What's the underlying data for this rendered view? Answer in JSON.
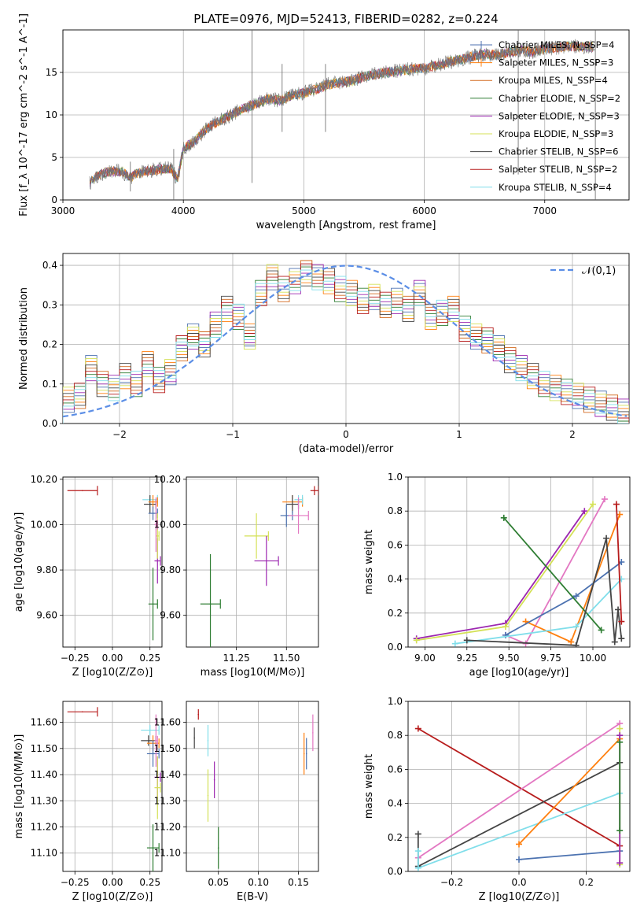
{
  "title": "PLATE=0976, MJD=52413, FIBERID=0282, z=0.224",
  "colors": {
    "chabrier_miles": "#4c72b0",
    "salpeter_miles": "#ff7f0e",
    "kroupa_miles": "#d2691e",
    "chabrier_elodie": "#2e7d32",
    "salpeter_elodie": "#9c27b0",
    "kroupa_elodie": "#d4e157",
    "chabrier_stelib": "#444444",
    "salpeter_stelib": "#b71c1c",
    "kroupa_stelib": "#80deea",
    "pink": "#e377c2",
    "normal": "#5b8ee6"
  },
  "chart_data": [
    {
      "id": "spectrum",
      "type": "line",
      "title": "PLATE=0976, MJD=52413, FIBERID=0282, z=0.224",
      "xlabel": "wavelength [Angstrom, rest frame]",
      "ylabel": "Flux [f_λ 10^-17 erg cm^-2 s^-1 A^-1]",
      "xlim": [
        3000,
        7700
      ],
      "ylim": [
        0,
        20
      ],
      "xticks": [
        3000,
        4000,
        5000,
        6000,
        7000
      ],
      "yticks": [
        0,
        5,
        10,
        15
      ],
      "x": [
        3220,
        3300,
        3400,
        3500,
        3550,
        3600,
        3700,
        3800,
        3900,
        3950,
        4000,
        4100,
        4200,
        4300,
        4400,
        4500,
        4600,
        4700,
        4800,
        4900,
        5000,
        5100,
        5200,
        5300,
        5400,
        5500,
        5600,
        5700,
        5800,
        5900,
        6000,
        6100,
        6200,
        6300,
        6400,
        6500,
        6600,
        6700,
        6800,
        6900,
        7000,
        7100,
        7200,
        7300,
        7400
      ],
      "y": [
        2.0,
        3.0,
        3.4,
        3.3,
        2.6,
        3.0,
        3.4,
        3.6,
        3.7,
        2.4,
        6.0,
        7.0,
        8.5,
        9.3,
        10.0,
        10.8,
        11.3,
        11.9,
        11.7,
        12.3,
        12.6,
        13.0,
        13.6,
        13.8,
        14.0,
        14.5,
        14.8,
        15.0,
        15.2,
        15.4,
        15.5,
        15.8,
        16.2,
        16.5,
        16.9,
        17.2,
        17.0,
        17.4,
        17.6,
        17.4,
        17.8,
        17.9,
        18.1,
        18.0,
        18.0
      ],
      "series": [
        {
          "name": "Chabrier MILES, N_SSP=4",
          "key": "chabrier_miles"
        },
        {
          "name": "Salpeter MILES, N_SSP=3",
          "key": "salpeter_miles"
        },
        {
          "name": "Kroupa MILES, N_SSP=4",
          "key": "kroupa_miles"
        },
        {
          "name": "Chabrier ELODIE, N_SSP=2",
          "key": "chabrier_elodie"
        },
        {
          "name": "Salpeter ELODIE, N_SSP=3",
          "key": "salpeter_elodie"
        },
        {
          "name": "Kroupa ELODIE, N_SSP=3",
          "key": "kroupa_elodie"
        },
        {
          "name": "Chabrier STELIB, N_SSP=6",
          "key": "chabrier_stelib"
        },
        {
          "name": "Salpeter STELIB, N_SSP=2",
          "key": "salpeter_stelib"
        },
        {
          "name": "Kroupa STELIB, N_SSP=4",
          "key": "kroupa_stelib"
        }
      ]
    },
    {
      "id": "residuals",
      "type": "histogram",
      "xlabel": "(data-model)/error",
      "ylabel": "Normed distribution",
      "xlim": [
        -2.5,
        2.5
      ],
      "ylim": [
        0,
        0.43
      ],
      "xticks": [
        -2,
        -1,
        0,
        1,
        2
      ],
      "yticks": [
        0.0,
        0.1,
        0.2,
        0.3,
        0.4
      ],
      "bins": [
        -2.5,
        -2.4,
        -2.3,
        -2.2,
        -2.1,
        -2.0,
        -1.9,
        -1.8,
        -1.7,
        -1.6,
        -1.5,
        -1.4,
        -1.3,
        -1.2,
        -1.1,
        -1.0,
        -0.9,
        -0.8,
        -0.7,
        -0.6,
        -0.5,
        -0.4,
        -0.3,
        -0.2,
        -0.1,
        0.0,
        0.1,
        0.2,
        0.3,
        0.4,
        0.5,
        0.6,
        0.7,
        0.8,
        0.9,
        1.0,
        1.1,
        1.2,
        1.3,
        1.4,
        1.5,
        1.6,
        1.7,
        1.8,
        1.9,
        2.0,
        2.1,
        2.2,
        2.3,
        2.4
      ],
      "values": [
        0.06,
        0.07,
        0.14,
        0.1,
        0.09,
        0.12,
        0.1,
        0.15,
        0.11,
        0.13,
        0.19,
        0.22,
        0.2,
        0.25,
        0.29,
        0.27,
        0.22,
        0.33,
        0.37,
        0.34,
        0.36,
        0.38,
        0.37,
        0.36,
        0.34,
        0.33,
        0.31,
        0.32,
        0.3,
        0.31,
        0.29,
        0.33,
        0.27,
        0.28,
        0.29,
        0.24,
        0.22,
        0.21,
        0.19,
        0.16,
        0.14,
        0.12,
        0.1,
        0.09,
        0.08,
        0.07,
        0.06,
        0.05,
        0.04,
        0.03
      ],
      "legend": "𝒩(0,1)",
      "normal_mu": 0,
      "normal_sigma": 1
    },
    {
      "id": "age_vs_z",
      "type": "errorbar",
      "xlabel": "Z [log10(Z/Z⊙)]",
      "ylabel": "age [log10(age/yr)]",
      "xlim": [
        -0.33,
        0.33
      ],
      "ylim": [
        9.46,
        10.21
      ],
      "xticks": [
        -0.25,
        0.0,
        0.25
      ],
      "yticks": [
        9.6,
        9.8,
        10.0,
        10.2
      ],
      "points": [
        {
          "key": "salpeter_stelib",
          "x": -0.2,
          "y": 10.15,
          "xerr": 0.1,
          "yerr": 0.0
        },
        {
          "key": "kroupa_stelib",
          "x": 0.25,
          "y": 10.11,
          "xerr": 0.05,
          "yerr": 0.02
        },
        {
          "key": "chabrier_stelib",
          "x": 0.25,
          "y": 10.09,
          "xerr": 0.04,
          "yerr": 0.04
        },
        {
          "key": "salpeter_miles",
          "x": 0.27,
          "y": 10.1,
          "xerr": 0.03,
          "yerr": 0.03
        },
        {
          "key": "chabrier_miles",
          "x": 0.27,
          "y": 10.05,
          "xerr": 0.03,
          "yerr": 0.03
        },
        {
          "key": "salpeter_elodie",
          "x": 0.3,
          "y": 9.84,
          "xerr": 0.02,
          "yerr": 0.1
        },
        {
          "key": "kroupa_elodie",
          "x": 0.3,
          "y": 9.95,
          "xerr": 0.01,
          "yerr": 0.1
        },
        {
          "key": "chabrier_elodie",
          "x": 0.27,
          "y": 9.65,
          "xerr": 0.03,
          "yerr": 0.16
        },
        {
          "key": "pink",
          "x": 0.29,
          "y": 10.0,
          "xerr": 0.01,
          "yerr": 0.12
        }
      ]
    },
    {
      "id": "age_vs_mass",
      "type": "errorbar",
      "xlabel": "mass [log10(M/M⊙)]",
      "ylabel": "",
      "xlim": [
        11.0,
        11.66
      ],
      "ylim": [
        9.46,
        10.21
      ],
      "xticks": [
        11.25,
        11.5
      ],
      "yticks": [
        9.6,
        9.8,
        10.0,
        10.2
      ],
      "points": [
        {
          "key": "salpeter_stelib",
          "x": 11.64,
          "y": 10.15,
          "xerr": 0.02,
          "yerr": 0.02
        },
        {
          "key": "salpeter_miles",
          "x": 11.53,
          "y": 10.1,
          "xerr": 0.05,
          "yerr": 0.03
        },
        {
          "key": "chabrier_stelib",
          "x": 11.53,
          "y": 10.09,
          "xerr": 0.03,
          "yerr": 0.04
        },
        {
          "key": "kroupa_stelib",
          "x": 11.56,
          "y": 10.11,
          "xerr": 0.02,
          "yerr": 0.02
        },
        {
          "key": "chabrier_miles",
          "x": 11.5,
          "y": 10.04,
          "xerr": 0.03,
          "yerr": 0.05
        },
        {
          "key": "pink",
          "x": 11.56,
          "y": 10.04,
          "xerr": 0.05,
          "yerr": 0.08
        },
        {
          "key": "kroupa_elodie",
          "x": 11.35,
          "y": 9.95,
          "xerr": 0.06,
          "yerr": 0.1
        },
        {
          "key": "salpeter_elodie",
          "x": 11.4,
          "y": 9.84,
          "xerr": 0.06,
          "yerr": 0.11
        },
        {
          "key": "chabrier_elodie",
          "x": 11.12,
          "y": 9.65,
          "xerr": 0.05,
          "yerr": 0.22
        }
      ]
    },
    {
      "id": "mass_weight_vs_age",
      "type": "line",
      "xlabel": "age [log10(age/yr)]",
      "ylabel": "mass weight",
      "xlim": [
        8.9,
        10.22
      ],
      "ylim": [
        0,
        1
      ],
      "xticks": [
        9.0,
        9.25,
        9.5,
        9.75,
        10.0
      ],
      "yticks": [
        0.0,
        0.2,
        0.4,
        0.6,
        0.8,
        1.0
      ],
      "series": [
        {
          "key": "salpeter_elodie",
          "x": [
            8.95,
            9.48,
            9.95
          ],
          "y": [
            0.05,
            0.14,
            0.8
          ]
        },
        {
          "key": "kroupa_elodie",
          "x": [
            8.95,
            9.48,
            10.0
          ],
          "y": [
            0.04,
            0.12,
            0.84
          ]
        },
        {
          "key": "pink",
          "x": [
            9.48,
            9.6,
            10.07
          ],
          "y": [
            0.07,
            0.02,
            0.87
          ]
        },
        {
          "key": "salpeter_miles",
          "x": [
            9.6,
            9.87,
            10.16
          ],
          "y": [
            0.15,
            0.03,
            0.78
          ]
        },
        {
          "key": "chabrier_miles",
          "x": [
            9.48,
            9.9,
            10.17
          ],
          "y": [
            0.07,
            0.3,
            0.5
          ]
        },
        {
          "key": "kroupa_stelib",
          "x": [
            9.18,
            9.9,
            10.17
          ],
          "y": [
            0.02,
            0.12,
            0.4
          ]
        },
        {
          "key": "chabrier_elodie",
          "x": [
            9.47,
            10.05
          ],
          "y": [
            0.76,
            0.1
          ]
        },
        {
          "key": "chabrier_stelib",
          "x": [
            9.25,
            9.9,
            10.08,
            10.13,
            10.15,
            10.17
          ],
          "y": [
            0.04,
            0.01,
            0.64,
            0.03,
            0.22,
            0.05
          ]
        },
        {
          "key": "salpeter_stelib",
          "x": [
            10.14,
            10.17
          ],
          "y": [
            0.84,
            0.15
          ]
        }
      ]
    },
    {
      "id": "mass_vs_z",
      "type": "errorbar",
      "xlabel": "Z [log10(Z/Z⊙)]",
      "ylabel": "mass [log10(M/M⊙)]",
      "xlim": [
        -0.33,
        0.33
      ],
      "ylim": [
        11.03,
        11.68
      ],
      "xticks": [
        -0.25,
        0.0,
        0.25
      ],
      "yticks": [
        11.1,
        11.2,
        11.3,
        11.4,
        11.5,
        11.6
      ],
      "points": [
        {
          "key": "salpeter_stelib",
          "x": -0.2,
          "y": 11.64,
          "xerr": 0.1,
          "yerr": 0.0
        },
        {
          "key": "kroupa_stelib",
          "x": 0.25,
          "y": 11.57,
          "xerr": 0.06,
          "yerr": 0.02
        },
        {
          "key": "chabrier_stelib",
          "x": 0.24,
          "y": 11.53,
          "xerr": 0.05,
          "yerr": 0.02
        },
        {
          "key": "salpeter_miles",
          "x": 0.27,
          "y": 11.52,
          "xerr": 0.04,
          "yerr": 0.03
        },
        {
          "key": "chabrier_miles",
          "x": 0.27,
          "y": 11.48,
          "xerr": 0.04,
          "yerr": 0.05
        },
        {
          "key": "pink",
          "x": 0.29,
          "y": 11.53,
          "xerr": 0.01,
          "yerr": 0.1
        },
        {
          "key": "salpeter_elodie",
          "x": 0.3,
          "y": 11.39,
          "xerr": 0.02,
          "yerr": 0.08
        },
        {
          "key": "kroupa_elodie",
          "x": 0.3,
          "y": 11.35,
          "xerr": 0.02,
          "yerr": 0.12
        },
        {
          "key": "chabrier_elodie",
          "x": 0.27,
          "y": 11.12,
          "xerr": 0.04,
          "yerr": 0.09
        }
      ]
    },
    {
      "id": "mass_vs_ebv",
      "type": "errorbar",
      "xlabel": "E(B-V)",
      "ylabel": "",
      "xlim": [
        0.01,
        0.175
      ],
      "ylim": [
        11.03,
        11.68
      ],
      "xticks": [
        0.05,
        0.1,
        0.15
      ],
      "yticks": [
        11.1,
        11.2,
        11.3,
        11.4,
        11.5,
        11.6
      ],
      "points": [
        {
          "key": "salpeter_stelib",
          "x": 0.025,
          "y": 11.63,
          "xerr": 0,
          "yerr": 0.02
        },
        {
          "key": "chabrier_stelib",
          "x": 0.02,
          "y": 11.54,
          "xerr": 0,
          "yerr": 0.04
        },
        {
          "key": "kroupa_stelib",
          "x": 0.037,
          "y": 11.53,
          "xerr": 0,
          "yerr": 0.06
        },
        {
          "key": "kroupa_elodie",
          "x": 0.037,
          "y": 11.32,
          "xerr": 0,
          "yerr": 0.1
        },
        {
          "key": "salpeter_elodie",
          "x": 0.045,
          "y": 11.38,
          "xerr": 0,
          "yerr": 0.07
        },
        {
          "key": "chabrier_elodie",
          "x": 0.05,
          "y": 11.12,
          "xerr": 0,
          "yerr": 0.08
        },
        {
          "key": "salpeter_miles",
          "x": 0.157,
          "y": 11.48,
          "xerr": 0,
          "yerr": 0.08
        },
        {
          "key": "chabrier_miles",
          "x": 0.16,
          "y": 11.48,
          "xerr": 0,
          "yerr": 0.06
        },
        {
          "key": "pink",
          "x": 0.168,
          "y": 11.56,
          "xerr": 0,
          "yerr": 0.07
        }
      ]
    },
    {
      "id": "mass_weight_vs_z",
      "type": "line",
      "xlabel": "Z [log10(Z/Z⊙)]",
      "ylabel": "mass weight",
      "xlim": [
        -0.33,
        0.33
      ],
      "ylim": [
        0,
        1
      ],
      "xticks": [
        -0.2,
        0.0,
        0.2
      ],
      "yticks": [
        0.0,
        0.2,
        0.4,
        0.6,
        0.8,
        1.0
      ],
      "series": [
        {
          "key": "salpeter_stelib",
          "x": [
            -0.3,
            0.3
          ],
          "y": [
            0.84,
            0.15
          ]
        },
        {
          "key": "pink",
          "x": [
            -0.3,
            0.3
          ],
          "y": [
            0.08,
            0.87
          ]
        },
        {
          "key": "chabrier_stelib",
          "x": [
            -0.3,
            -0.3,
            0.3
          ],
          "y": [
            0.22,
            0.03,
            0.64
          ]
        },
        {
          "key": "kroupa_stelib",
          "x": [
            -0.3,
            -0.3,
            0.3
          ],
          "y": [
            0.12,
            0.02,
            0.46
          ]
        },
        {
          "key": "salpeter_miles",
          "x": [
            0.0,
            0.3
          ],
          "y": [
            0.16,
            0.78
          ]
        },
        {
          "key": "chabrier_miles",
          "x": [
            0.0,
            0.3
          ],
          "y": [
            0.07,
            0.12
          ]
        },
        {
          "key": "kroupa_elodie",
          "x": [
            0.3,
            0.3
          ],
          "y": [
            0.84,
            0.04
          ]
        },
        {
          "key": "salpeter_elodie",
          "x": [
            0.3,
            0.3
          ],
          "y": [
            0.8,
            0.05
          ]
        },
        {
          "key": "chabrier_elodie",
          "x": [
            0.3,
            0.3
          ],
          "y": [
            0.76,
            0.24
          ]
        }
      ]
    }
  ]
}
